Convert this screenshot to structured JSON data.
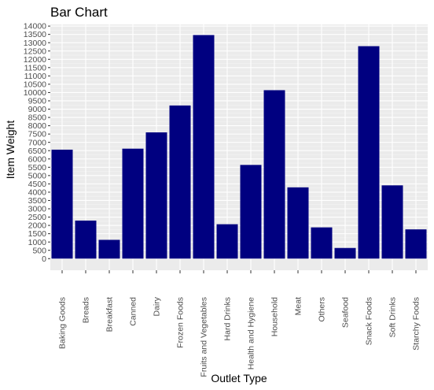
{
  "chart_data": {
    "type": "bar",
    "title": "Bar Chart",
    "xlabel": "Outlet Type",
    "ylabel": "Item Weight",
    "categories": [
      "Baking Goods",
      "Breads",
      "Breakfast",
      "Canned",
      "Dairy",
      "Frozen Foods",
      "Fruits and Vegetables",
      "Hard Drinks",
      "Health and Hygiene",
      "Household",
      "Meat",
      "Others",
      "Seafood",
      "Snack Foods",
      "Soft Drinks",
      "Starchy Foods"
    ],
    "values": [
      6560,
      2290,
      1130,
      6620,
      7600,
      9220,
      13460,
      2070,
      5640,
      10140,
      4290,
      1880,
      640,
      12790,
      4410,
      1760
    ],
    "ylim": [
      -700,
      14100
    ],
    "yticks": [
      0,
      500,
      1000,
      1500,
      2000,
      2500,
      3000,
      3500,
      4000,
      4500,
      5000,
      5500,
      6000,
      6500,
      7000,
      7500,
      8000,
      8500,
      9000,
      9500,
      10000,
      10500,
      11000,
      11500,
      12000,
      12500,
      13000,
      13500,
      14000
    ],
    "bar_color": "#000080",
    "panel_background": "#ebebeb",
    "grid": true,
    "legend": "none"
  }
}
